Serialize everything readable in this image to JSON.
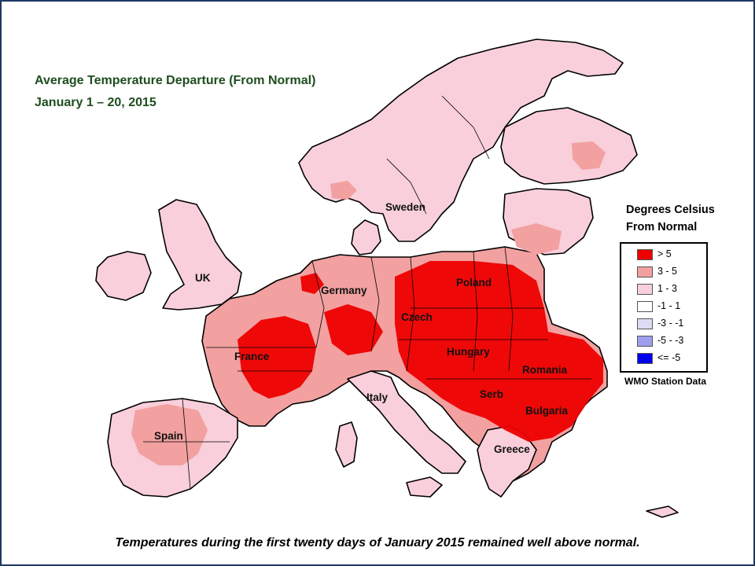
{
  "title": {
    "line1": "Average Temperature  Departure  (From Normal)",
    "line2": "January  1 – 20, 2015"
  },
  "legend": {
    "title_line1": "Degrees Celsius",
    "title_line2": "From Normal",
    "items": [
      {
        "label": "> 5",
        "color": "#ee0000"
      },
      {
        "label": "3 - 5",
        "color": "#f2a0a0"
      },
      {
        "label": "1 - 3",
        "color": "#f8cfda"
      },
      {
        "label": "-1 - 1",
        "color": "#ffffff"
      },
      {
        "label": "-3 - -1",
        "color": "#dcdcf4"
      },
      {
        "label": "-5 - -3",
        "color": "#9f9ff0"
      },
      {
        "label": "<= -5",
        "color": "#0000ee"
      }
    ]
  },
  "source_note": "WMO Station Data",
  "countries": {
    "uk": "UK",
    "sweden": "Sweden",
    "germany": "Germany",
    "poland": "Poland",
    "czech": "Czech",
    "france": "France",
    "hungary": "Hungary",
    "romania": "Romania",
    "italy": "Italy",
    "serb": "Serb",
    "bulgaria": "Bulgaria",
    "spain": "Spain",
    "greece": "Greece"
  },
  "caption": "Temperatures  during  the first  twenty days  of  January  2015  remained  well  above  normal.",
  "colors": {
    "frame": "#1f3864",
    "title": "#1e4d1e",
    "above_5": "#ee0000",
    "range_3_5": "#f2a0a0",
    "range_1_3": "#f8cfda"
  }
}
